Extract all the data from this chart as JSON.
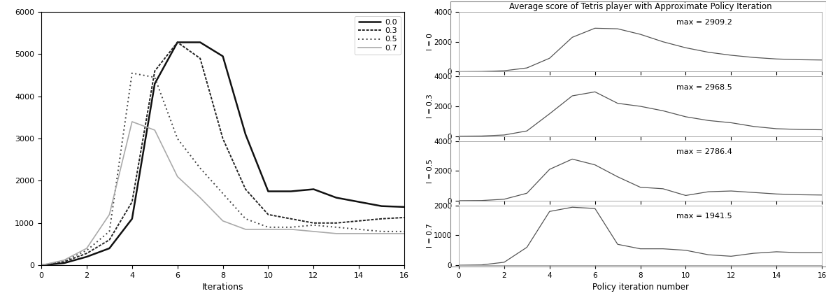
{
  "left_chart": {
    "xlabel": "Iterations",
    "xlim": [
      0,
      16
    ],
    "ylim": [
      0,
      6000
    ],
    "xticks": [
      0,
      2,
      4,
      6,
      8,
      10,
      12,
      14,
      16
    ],
    "yticks": [
      0,
      1000,
      2000,
      3000,
      4000,
      5000,
      6000
    ],
    "legend_labels": [
      "0.0",
      "0.3",
      "0.5",
      "0.7"
    ],
    "series": {
      "0.0": {
        "x": [
          0,
          1,
          2,
          3,
          4,
          5,
          6,
          7,
          8,
          9,
          10,
          11,
          12,
          13,
          14,
          15,
          16
        ],
        "y": [
          0,
          50,
          200,
          400,
          1100,
          4300,
          5280,
          5280,
          4950,
          3100,
          1750,
          1750,
          1800,
          1600,
          1500,
          1400,
          1380
        ]
      },
      "0.3": {
        "x": [
          0,
          1,
          2,
          3,
          4,
          5,
          6,
          7,
          8,
          9,
          10,
          11,
          12,
          13,
          14,
          15,
          16
        ],
        "y": [
          0,
          80,
          280,
          600,
          1500,
          4600,
          5280,
          4900,
          3000,
          1800,
          1200,
          1100,
          1000,
          1000,
          1050,
          1100,
          1130
        ]
      },
      "0.5": {
        "x": [
          0,
          1,
          2,
          3,
          4,
          5,
          6,
          7,
          8,
          9,
          10,
          11,
          12,
          13,
          14,
          15,
          16
        ],
        "y": [
          0,
          100,
          350,
          800,
          4550,
          4450,
          3000,
          2300,
          1700,
          1100,
          900,
          900,
          950,
          900,
          850,
          800,
          800
        ]
      },
      "0.7": {
        "x": [
          0,
          1,
          2,
          3,
          4,
          5,
          6,
          7,
          8,
          9,
          10,
          11,
          12,
          13,
          14,
          15,
          16
        ],
        "y": [
          0,
          120,
          400,
          1200,
          3400,
          3200,
          2100,
          1600,
          1050,
          850,
          850,
          850,
          800,
          750,
          750,
          750,
          750
        ]
      }
    }
  },
  "right_chart": {
    "title": "Average score of Tetris player with Approximate Policy Iteration",
    "xlabel": "Policy iteration number",
    "xlim": [
      0,
      16
    ],
    "xticks": [
      0,
      2,
      4,
      6,
      8,
      10,
      12,
      14,
      16
    ],
    "subplots": [
      {
        "label": "l = 0",
        "ylim": [
          0,
          4000
        ],
        "yticks": [
          0,
          2000,
          4000
        ],
        "max_text": "max = 2909.2",
        "x": [
          0,
          1,
          2,
          3,
          4,
          5,
          6,
          7,
          8,
          9,
          10,
          11,
          12,
          13,
          14,
          15,
          16
        ],
        "y": [
          0,
          10,
          60,
          250,
          900,
          2300,
          2909,
          2870,
          2500,
          2000,
          1600,
          1300,
          1100,
          950,
          850,
          800,
          780
        ]
      },
      {
        "label": "l = 0.3",
        "ylim": [
          0,
          4000
        ],
        "yticks": [
          0,
          2000,
          4000
        ],
        "max_text": "max = 2968.5",
        "x": [
          0,
          1,
          2,
          3,
          4,
          5,
          6,
          7,
          8,
          9,
          10,
          11,
          12,
          13,
          14,
          15,
          16
        ],
        "y": [
          0,
          10,
          80,
          350,
          1500,
          2700,
          2968,
          2200,
          2000,
          1700,
          1300,
          1050,
          900,
          650,
          500,
          450,
          430
        ]
      },
      {
        "label": "l = 0.5",
        "ylim": [
          0,
          4000
        ],
        "yticks": [
          0,
          2000,
          4000
        ],
        "max_text": "max = 2786.4",
        "x": [
          0,
          1,
          2,
          3,
          4,
          5,
          6,
          7,
          8,
          9,
          10,
          11,
          12,
          13,
          14,
          15,
          16
        ],
        "y": [
          0,
          10,
          100,
          500,
          2100,
          2786,
          2400,
          1600,
          900,
          800,
          350,
          600,
          650,
          550,
          450,
          400,
          380
        ]
      },
      {
        "label": "l = 0.7",
        "ylim": [
          0,
          2000
        ],
        "yticks": [
          0,
          1000,
          2000
        ],
        "max_text": "max = 1941.5",
        "x": [
          0,
          1,
          2,
          3,
          4,
          5,
          6,
          7,
          8,
          9,
          10,
          11,
          12,
          13,
          14,
          15,
          16
        ],
        "y": [
          0,
          10,
          100,
          600,
          1800,
          1941,
          1900,
          700,
          550,
          550,
          500,
          350,
          300,
          400,
          450,
          420,
          420
        ]
      }
    ]
  },
  "bg_color": "#ffffff"
}
